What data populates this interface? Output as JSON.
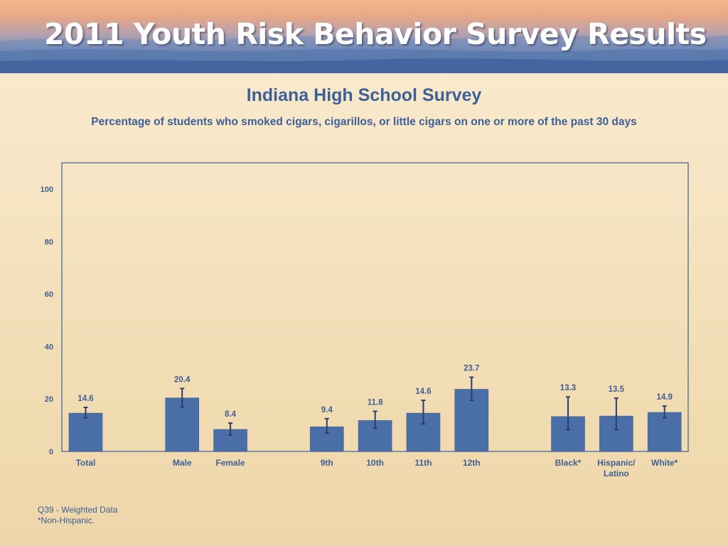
{
  "banner": {
    "title": "2011 Youth Risk Behavior Survey Results"
  },
  "header": {
    "title": "Indiana High School Survey",
    "subtitle": "Percentage of students who smoked cigars, cigarillos, or little cigars on one or more of the past 30 days"
  },
  "chart_data": {
    "type": "bar",
    "categories": [
      "Total",
      "Male",
      "Female",
      "9th",
      "10th",
      "11th",
      "12th",
      "Black*",
      "Hispanic/ Latino",
      "White*"
    ],
    "values": [
      14.6,
      20.4,
      8.4,
      9.4,
      11.8,
      14.6,
      23.7,
      13.3,
      13.5,
      14.9
    ],
    "error_low": [
      12.8,
      17.0,
      6.3,
      7.0,
      8.8,
      10.5,
      19.5,
      8.3,
      8.3,
      12.8
    ],
    "error_high": [
      16.8,
      24.0,
      10.8,
      12.5,
      15.3,
      19.5,
      28.3,
      20.8,
      20.3,
      17.3
    ],
    "ylim": [
      0,
      100
    ],
    "yticks": [
      0,
      20,
      40,
      60,
      80,
      100
    ],
    "bar_color": "#4a6ea8",
    "grid": false
  },
  "footnotes": [
    "Q39 - Weighted Data",
    "*Non-Hispanic."
  ]
}
